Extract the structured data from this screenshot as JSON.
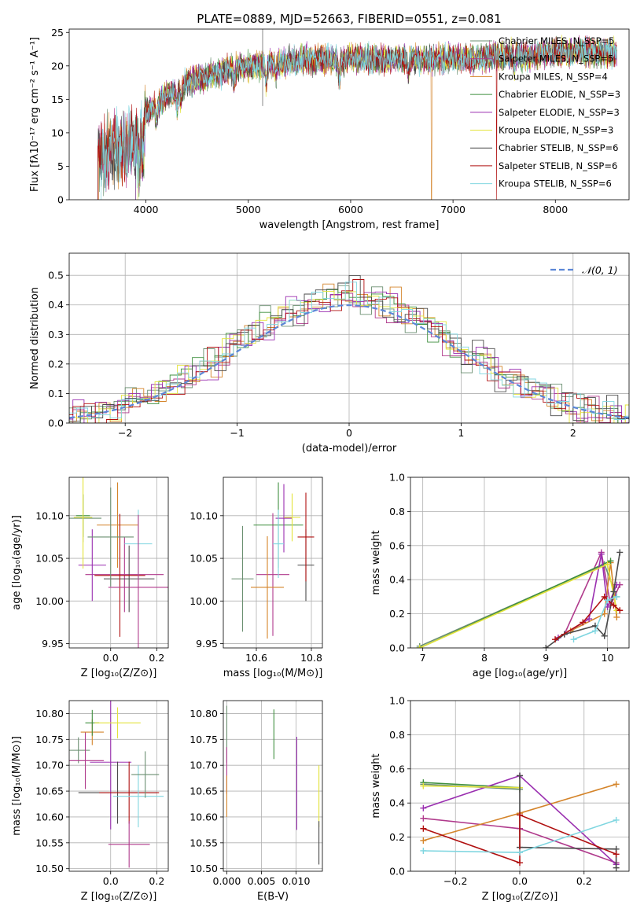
{
  "figure_title": "PLATE=0889, MJD=52663, FIBERID=0551, z=0.081",
  "colors": {
    "series": [
      "#6b8f71",
      "#b03a8c",
      "#d4842a",
      "#3f8f3f",
      "#9a2fb0",
      "#e3e33a",
      "#4a4a4a",
      "#b01010",
      "#7fd6e0"
    ],
    "normal": "#5b86d6",
    "grid": "#b0b0b0"
  },
  "chart_data": [
    {
      "id": "spectrum",
      "type": "line",
      "xlabel": "wavelength [Angstrom, rest frame]",
      "ylabel": "Flux [fλ10⁻¹⁷ erg cm⁻² s⁻¹ A⁻¹]",
      "xlim": [
        3250,
        8720
      ],
      "ylim": [
        0,
        25.5
      ],
      "xticks": [
        4000,
        5000,
        6000,
        7000,
        8000
      ],
      "yticks": [
        0,
        5,
        10,
        15,
        20,
        25
      ],
      "grid": false,
      "legend_position": "top-right",
      "continuum": {
        "x": [
          3520,
          3700,
          3900,
          4000,
          4200,
          4400,
          4600,
          4800,
          5000,
          5200,
          5400,
          5600,
          5800,
          6000,
          6200,
          6400,
          6600,
          6800,
          7000,
          7200,
          7400,
          7600,
          7800,
          8000,
          8200,
          8400,
          8600
        ],
        "y": [
          7.0,
          7.5,
          8.5,
          13.0,
          15.5,
          17.5,
          18.5,
          19.5,
          20.0,
          20.5,
          20.5,
          21.0,
          21.0,
          21.0,
          21.0,
          21.0,
          21.0,
          21.0,
          21.0,
          21.0,
          21.5,
          21.5,
          21.5,
          22.0,
          22.0,
          22.0,
          22.0
        ]
      },
      "series": [
        {
          "name": "Chabrier MILES, N_SSP=5"
        },
        {
          "name": "Salpeter MILES, N_SSP=5"
        },
        {
          "name": "Kroupa MILES, N_SSP=4"
        },
        {
          "name": "Chabrier ELODIE, N_SSP=3"
        },
        {
          "name": "Salpeter ELODIE, N_SSP=3"
        },
        {
          "name": "Kroupa ELODIE, N_SSP=3"
        },
        {
          "name": "Chabrier STELIB, N_SSP=6"
        },
        {
          "name": "Salpeter STELIB, N_SSP=6"
        },
        {
          "name": "Kroupa STELIB, N_SSP=6"
        }
      ]
    },
    {
      "id": "residuals",
      "type": "histogram",
      "xlabel": "(data-model)/error",
      "ylabel": "Normed distribution",
      "xlim": [
        -2.5,
        2.5
      ],
      "ylim": [
        0,
        0.575
      ],
      "xticks": [
        -2,
        -1,
        0,
        1,
        2
      ],
      "yticks": [
        0.0,
        0.1,
        0.2,
        0.3,
        0.4,
        0.5
      ],
      "grid": true,
      "legend_position": "top-right",
      "normal_label": "𝒩(0, 1)",
      "bin_width": 0.1
    },
    {
      "id": "age_vs_Z",
      "type": "scatter",
      "xlabel": "Z [log₁₀(Z/Z⊙)]",
      "ylabel": "age  [log₁₀(age/yr)]",
      "xlim": [
        -0.18,
        0.25
      ],
      "ylim": [
        9.945,
        10.145
      ],
      "xticks": [
        0.0,
        0.2
      ],
      "yticks": [
        9.95,
        10.0,
        10.05,
        10.1
      ],
      "grid": true,
      "points": [
        {
          "x": -0.12,
          "y": 10.097,
          "xerr": 0.08,
          "yerr": 0.028
        },
        {
          "x": 0.06,
          "y": 10.031,
          "xerr": 0.17,
          "yerr": 0.044
        },
        {
          "x": 0.03,
          "y": 10.089,
          "xerr": 0.09,
          "yerr": 0.05
        },
        {
          "x": -0.12,
          "y": 10.1,
          "xerr": 0.03,
          "yerr": 0.025
        },
        {
          "x": -0.08,
          "y": 10.042,
          "xerr": 0.06,
          "yerr": 0.042
        },
        {
          "x": -0.12,
          "y": 10.098,
          "xerr": 0.04,
          "yerr": 0.06
        },
        {
          "x": 0.08,
          "y": 10.026,
          "xerr": 0.11,
          "yerr": 0.039
        },
        {
          "x": 0.04,
          "y": 10.03,
          "xerr": 0.11,
          "yerr": 0.072
        },
        {
          "x": 0.12,
          "y": 10.067,
          "xerr": 0.06,
          "yerr": 0.04
        },
        {
          "x": 0.0,
          "y": 10.075,
          "xerr": 0.1,
          "yerr": 0.058
        },
        {
          "x": 0.12,
          "y": 10.016,
          "xerr": 0.13,
          "yerr": 0.085
        }
      ]
    },
    {
      "id": "age_vs_mass",
      "type": "scatter",
      "xlabel": "mass [log₁₀(M/M⊙)]",
      "ylabel": "",
      "xlim": [
        10.48,
        10.84
      ],
      "ylim": [
        9.945,
        10.145
      ],
      "xticks": [
        10.6,
        10.8
      ],
      "yticks": [
        9.95,
        10.0,
        10.05,
        10.1
      ],
      "grid": true,
      "points": [
        {
          "x": 10.55,
          "y": 10.026,
          "xerr": 0.04,
          "yerr": 0.062
        },
        {
          "x": 10.66,
          "y": 10.031,
          "xerr": 0.06,
          "yerr": 0.072
        },
        {
          "x": 10.64,
          "y": 10.016,
          "xerr": 0.06,
          "yerr": 0.06
        },
        {
          "x": 10.68,
          "y": 10.089,
          "xerr": 0.09,
          "yerr": 0.05
        },
        {
          "x": 10.7,
          "y": 10.097,
          "xerr": 0.03,
          "yerr": 0.04
        },
        {
          "x": 10.73,
          "y": 10.098,
          "xerr": 0.03,
          "yerr": 0.028
        },
        {
          "x": 10.78,
          "y": 10.042,
          "xerr": 0.03,
          "yerr": 0.042
        },
        {
          "x": 10.78,
          "y": 10.075,
          "xerr": 0.03,
          "yerr": 0.052
        },
        {
          "x": 10.68,
          "y": 10.067,
          "xerr": 0.02,
          "yerr": 0.04
        }
      ]
    },
    {
      "id": "weight_vs_age",
      "type": "line",
      "xlabel": "age  [log₁₀(age/yr)]",
      "ylabel": "mass weight",
      "xlim": [
        6.8,
        10.35
      ],
      "ylim": [
        0,
        1
      ],
      "xticks": [
        7,
        8,
        9,
        10
      ],
      "yticks": [
        0.0,
        0.2,
        0.4,
        0.6,
        0.8,
        1.0
      ],
      "grid": true,
      "series": [
        {
          "x": [
            6.95,
            9.95,
            10.15
          ],
          "y": [
            0.01,
            0.49,
            0.3
          ]
        },
        {
          "x": [
            9.3,
            9.9,
            10.05,
            10.2
          ],
          "y": [
            0.08,
            0.56,
            0.25,
            0.37
          ]
        },
        {
          "x": [
            9.4,
            9.95,
            10.05,
            10.15
          ],
          "y": [
            0.1,
            0.2,
            0.5,
            0.18
          ]
        },
        {
          "x": [
            6.95,
            10.05
          ],
          "y": [
            0.0,
            0.51
          ]
        },
        {
          "x": [
            9.2,
            9.7,
            9.9,
            10.0,
            10.15
          ],
          "y": [
            0.06,
            0.17,
            0.55,
            0.24,
            0.37
          ]
        },
        {
          "x": [
            6.95,
            10.0,
            10.15
          ],
          "y": [
            0.0,
            0.49,
            0.22
          ]
        },
        {
          "x": [
            9.0,
            9.3,
            9.8,
            9.95,
            10.1,
            10.2
          ],
          "y": [
            0.0,
            0.08,
            0.13,
            0.07,
            0.33,
            0.56
          ]
        },
        {
          "x": [
            9.15,
            9.6,
            9.95,
            10.1,
            10.2
          ],
          "y": [
            0.05,
            0.15,
            0.3,
            0.25,
            0.22
          ]
        },
        {
          "x": [
            9.45,
            9.8,
            10.0,
            10.15
          ],
          "y": [
            0.05,
            0.1,
            0.28,
            0.3
          ]
        }
      ]
    },
    {
      "id": "mass_vs_Z",
      "type": "scatter",
      "xlabel": "Z [log₁₀(Z/Z⊙)]",
      "ylabel": "mass [log₁₀(M/M⊙)]",
      "xlim": [
        -0.18,
        0.25
      ],
      "ylim": [
        10.495,
        10.825
      ],
      "xticks": [
        0.0,
        0.2
      ],
      "yticks": [
        10.5,
        10.55,
        10.6,
        10.65,
        10.7,
        10.75,
        10.8
      ],
      "grid": true,
      "points": [
        {
          "x": -0.14,
          "y": 10.729,
          "xerr": 0.05,
          "yerr": 0.025
        },
        {
          "x": -0.11,
          "y": 10.709,
          "xerr": 0.08,
          "yerr": 0.055
        },
        {
          "x": -0.08,
          "y": 10.764,
          "xerr": 0.05,
          "yerr": 0.025
        },
        {
          "x": -0.08,
          "y": 10.782,
          "xerr": 0.03,
          "yerr": 0.025
        },
        {
          "x": 0.0,
          "y": 10.706,
          "xerr": 0.09,
          "yerr": 0.13
        },
        {
          "x": 0.03,
          "y": 10.782,
          "xerr": 0.1,
          "yerr": 0.03
        },
        {
          "x": 0.03,
          "y": 10.647,
          "xerr": 0.17,
          "yerr": 0.06
        },
        {
          "x": 0.08,
          "y": 10.647,
          "xerr": 0.13,
          "yerr": 0.06
        },
        {
          "x": 0.12,
          "y": 10.64,
          "xerr": 0.11,
          "yerr": 0.06
        },
        {
          "x": 0.15,
          "y": 10.682,
          "xerr": 0.06,
          "yerr": 0.045
        },
        {
          "x": 0.08,
          "y": 10.547,
          "xerr": 0.09,
          "yerr": 0.045
        }
      ]
    },
    {
      "id": "mass_vs_EBV",
      "type": "scatter",
      "xlabel": "E(B-V)",
      "ylabel": "",
      "xlim": [
        -0.0005,
        0.0138
      ],
      "ylim": [
        10.495,
        10.825
      ],
      "xticks": [
        0.0,
        0.005,
        0.01
      ],
      "yticks": [
        10.5,
        10.55,
        10.6,
        10.65,
        10.7,
        10.75,
        10.8
      ],
      "grid": true,
      "points": [
        {
          "x": 0.0,
          "y": 10.76,
          "xerr": 0,
          "yerr": 0.055
        },
        {
          "x": 0.0,
          "y": 10.69,
          "xerr": 0,
          "yerr": 0.045
        },
        {
          "x": 0.0,
          "y": 10.64,
          "xerr": 0,
          "yerr": 0.04
        },
        {
          "x": 0.0068,
          "y": 10.76,
          "xerr": 0,
          "yerr": 0.048
        },
        {
          "x": 0.0101,
          "y": 10.665,
          "xerr": 0,
          "yerr": 0.09
        },
        {
          "x": 0.0133,
          "y": 10.64,
          "xerr": 0,
          "yerr": 0.06
        },
        {
          "x": 0.0133,
          "y": 10.55,
          "xerr": 0,
          "yerr": 0.042
        }
      ]
    },
    {
      "id": "weight_vs_Z",
      "type": "line",
      "xlabel": "Z [log₁₀(Z/Z⊙)]",
      "ylabel": "mass weight",
      "xlim": [
        -0.34,
        0.34
      ],
      "ylim": [
        0,
        1
      ],
      "xticks": [
        -0.2,
        0.0,
        0.2
      ],
      "yticks": [
        0.0,
        0.2,
        0.4,
        0.6,
        0.8,
        1.0
      ],
      "grid": true,
      "series": [
        {
          "x": [
            -0.3,
            0.0
          ],
          "y": [
            0.51,
            0.48
          ]
        },
        {
          "x": [
            -0.3,
            0.0,
            0.3
          ],
          "y": [
            0.31,
            0.25,
            0.05
          ]
        },
        {
          "x": [
            -0.3,
            0.0,
            0.3
          ],
          "y": [
            0.18,
            0.34,
            0.51
          ]
        },
        {
          "x": [
            -0.3,
            0.0
          ],
          "y": [
            0.52,
            0.49
          ]
        },
        {
          "x": [
            -0.3,
            0.0,
            0.3
          ],
          "y": [
            0.37,
            0.56,
            0.04
          ]
        },
        {
          "x": [
            -0.3,
            0.0
          ],
          "y": [
            0.5,
            0.49
          ]
        },
        {
          "x": [
            0.0,
            0.0,
            0.3,
            0.3
          ],
          "y": [
            0.56,
            0.14,
            0.13,
            0.02
          ]
        },
        {
          "x": [
            -0.3,
            0.0,
            0.0,
            0.3
          ],
          "y": [
            0.25,
            0.05,
            0.33,
            0.1
          ]
        },
        {
          "x": [
            -0.3,
            0.0,
            0.3
          ],
          "y": [
            0.12,
            0.11,
            0.3
          ]
        }
      ]
    }
  ]
}
